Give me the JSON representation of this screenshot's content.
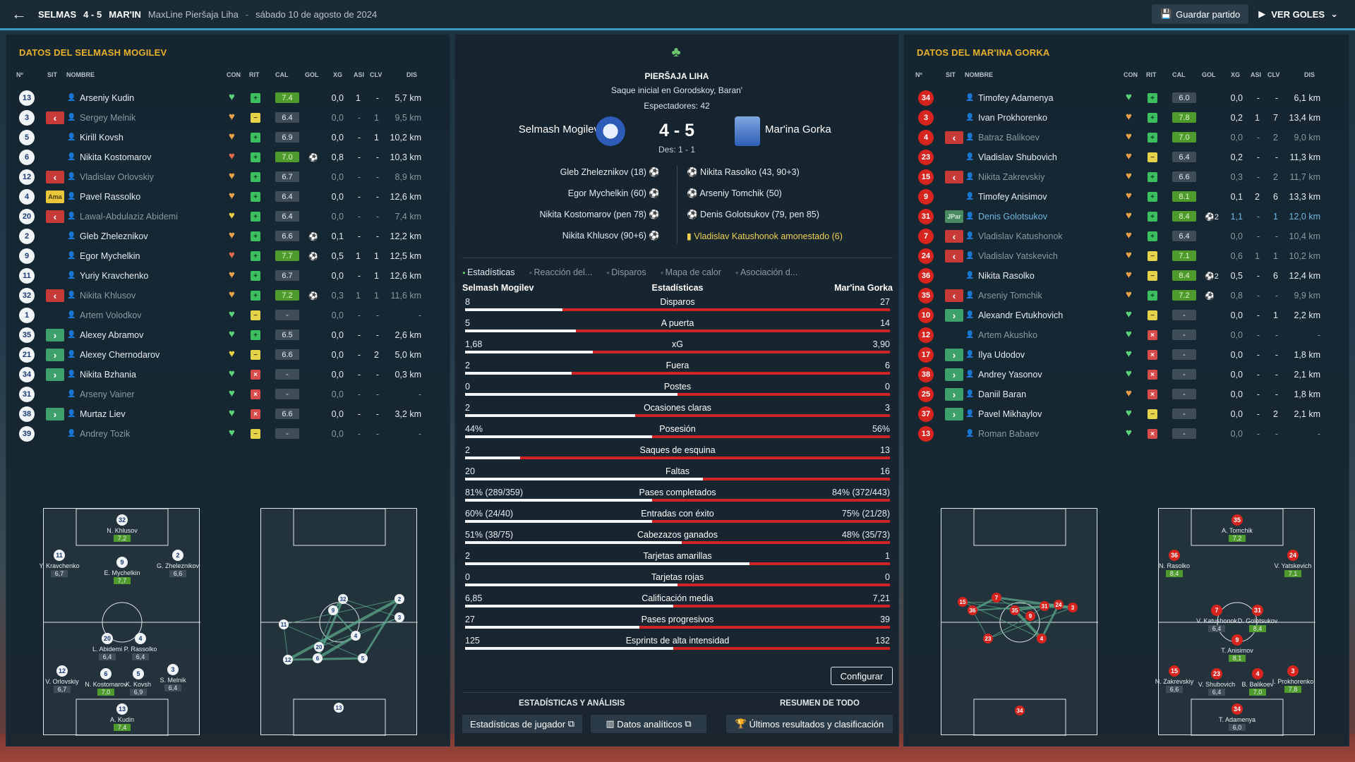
{
  "topbar": {
    "home": "SELMAS",
    "score": "4 - 5",
    "away": "MAR'IN",
    "competition": "MaxLine Pieršaja Liha",
    "sep": "-",
    "date": "sábado 10 de agosto de 2024",
    "save_label": "Guardar partido",
    "goals_label": "VER GOLES"
  },
  "left": {
    "title": "DATOS DEL SELMASH MOGILEV",
    "cols": {
      "n": "Nº",
      "sit": "SIT",
      "name": "NOMBRE",
      "con": "CON",
      "rit": "RIT",
      "cal": "CAL",
      "gol": "GOL",
      "xg": "XG",
      "asi": "ASI",
      "clv": "CLV",
      "dis": "DIS"
    },
    "players": [
      {
        "n": "13",
        "sit": "",
        "name": "Arseniy Kudin",
        "con": "g",
        "rit": "g",
        "cal": "7.4",
        "calg": true,
        "gol": "",
        "xg": "0,0",
        "asi": "1",
        "clv": "-",
        "dis": "5,7 km",
        "dim": false
      },
      {
        "n": "3",
        "sit": "out",
        "name": "Sergey Melnik",
        "con": "o",
        "rit": "y",
        "cal": "6.4",
        "gol": "",
        "xg": "0,0",
        "asi": "-",
        "clv": "1",
        "dis": "9,5 km",
        "dim": true
      },
      {
        "n": "5",
        "sit": "",
        "name": "Kirill Kovsh",
        "con": "o",
        "rit": "g",
        "cal": "6.9",
        "gol": "",
        "xg": "0,0",
        "asi": "-",
        "clv": "1",
        "dis": "10,2 km",
        "dim": false
      },
      {
        "n": "6",
        "sit": "",
        "name": "Nikita Kostomarov",
        "con": "r",
        "rit": "g",
        "cal": "7.0",
        "calg": true,
        "gol": "⚽",
        "xg": "0,8",
        "asi": "-",
        "clv": "-",
        "dis": "10,3 km",
        "dim": false
      },
      {
        "n": "12",
        "sit": "out",
        "name": "Vladislav Orlovskiy",
        "con": "o",
        "rit": "g",
        "cal": "6.7",
        "gol": "",
        "xg": "0,0",
        "asi": "-",
        "clv": "-",
        "dis": "8,9 km",
        "dim": true
      },
      {
        "n": "4",
        "sit": "cap",
        "sit_text": "Ama",
        "name": "Pavel Rassolko",
        "con": "o",
        "rit": "g",
        "cal": "6.4",
        "gol": "",
        "xg": "0,0",
        "asi": "-",
        "clv": "-",
        "dis": "12,6 km",
        "dim": false
      },
      {
        "n": "20",
        "sit": "out",
        "name": "Lawal-Abdulaziz Abidemi",
        "con": "y",
        "rit": "g",
        "cal": "6.4",
        "gol": "",
        "xg": "0,0",
        "asi": "-",
        "clv": "-",
        "dis": "7,4 km",
        "dim": true
      },
      {
        "n": "2",
        "sit": "",
        "name": "Gleb Zheleznikov",
        "con": "o",
        "rit": "g",
        "cal": "6.6",
        "gol": "⚽",
        "xg": "0,1",
        "asi": "-",
        "clv": "-",
        "dis": "12,2 km",
        "dim": false
      },
      {
        "n": "9",
        "sit": "",
        "name": "Egor Mychelkin",
        "con": "r",
        "rit": "g",
        "cal": "7.7",
        "calg": true,
        "gol": "⚽",
        "xg": "0,5",
        "asi": "1",
        "clv": "1",
        "dis": "12,5 km",
        "dim": false
      },
      {
        "n": "11",
        "sit": "",
        "name": "Yuriy Kravchenko",
        "con": "o",
        "rit": "g",
        "cal": "6.7",
        "gol": "",
        "xg": "0,0",
        "asi": "-",
        "clv": "1",
        "dis": "12,6 km",
        "dim": false
      },
      {
        "n": "32",
        "sit": "out",
        "name": "Nikita Khlusov",
        "con": "o",
        "rit": "g",
        "cal": "7.2",
        "calg": true,
        "gol": "⚽",
        "xg": "0,3",
        "asi": "1",
        "clv": "1",
        "dis": "11,6 km",
        "dim": true
      },
      {
        "n": "1",
        "sit": "",
        "name": "Artem Volodkov",
        "con": "g",
        "rit": "y",
        "cal": "-",
        "gol": "",
        "xg": "0,0",
        "asi": "-",
        "clv": "-",
        "dis": "-",
        "dim": true
      },
      {
        "n": "35",
        "sit": "in",
        "name": "Alexey Abramov",
        "con": "g",
        "rit": "g",
        "cal": "6.5",
        "gol": "",
        "xg": "0,0",
        "asi": "-",
        "clv": "-",
        "dis": "2,6 km",
        "dim": false
      },
      {
        "n": "21",
        "sit": "in",
        "name": "Alexey Chernodarov",
        "con": "y",
        "rit": "y",
        "cal": "6.6",
        "gol": "",
        "xg": "0,0",
        "asi": "-",
        "clv": "2",
        "dis": "5,0 km",
        "dim": false
      },
      {
        "n": "34",
        "sit": "in",
        "name": "Nikita Bzhania",
        "con": "g",
        "rit": "r",
        "cal": "-",
        "gol": "",
        "xg": "0,0",
        "asi": "-",
        "clv": "-",
        "dis": "0,3 km",
        "dim": false
      },
      {
        "n": "31",
        "sit": "",
        "name": "Arseny Vainer",
        "con": "g",
        "rit": "r",
        "cal": "-",
        "gol": "",
        "xg": "0,0",
        "asi": "-",
        "clv": "-",
        "dis": "-",
        "dim": true
      },
      {
        "n": "38",
        "sit": "in",
        "name": "Murtaz Liev",
        "con": "g",
        "rit": "r",
        "cal": "6.6",
        "gol": "",
        "xg": "0,0",
        "asi": "-",
        "clv": "-",
        "dis": "3,2 km",
        "dim": false
      },
      {
        "n": "39",
        "sit": "",
        "name": "Andrey Tozik",
        "con": "g",
        "rit": "y",
        "cal": "-",
        "gol": "",
        "xg": "0,0",
        "asi": "-",
        "clv": "-",
        "dis": "-",
        "dim": true
      }
    ]
  },
  "right": {
    "title": "DATOS DEL MAR'INA GORKA",
    "players": [
      {
        "n": "34",
        "sit": "",
        "name": "Timofey Adamenya",
        "con": "g",
        "rit": "g",
        "cal": "6.0",
        "gol": "",
        "xg": "0,0",
        "asi": "-",
        "clv": "-",
        "dis": "6,1 km",
        "dim": false
      },
      {
        "n": "3",
        "sit": "",
        "name": "Ivan Prokhorenko",
        "con": "o",
        "rit": "g",
        "cal": "7.8",
        "calg": true,
        "gol": "",
        "xg": "0,2",
        "asi": "1",
        "clv": "7",
        "dis": "13,4 km",
        "dim": false
      },
      {
        "n": "4",
        "sit": "out",
        "name": "Batraz Balikoev",
        "con": "o",
        "rit": "g",
        "cal": "7.0",
        "calg": true,
        "gol": "",
        "xg": "0,0",
        "asi": "-",
        "clv": "2",
        "dis": "9,0 km",
        "dim": true
      },
      {
        "n": "23",
        "sit": "",
        "name": "Vladislav Shubovich",
        "con": "o",
        "rit": "y",
        "cal": "6.4",
        "gol": "",
        "xg": "0,2",
        "asi": "-",
        "clv": "-",
        "dis": "11,3 km",
        "dim": false
      },
      {
        "n": "15",
        "sit": "out",
        "name": "Nikita Zakrevskiy",
        "con": "o",
        "rit": "g",
        "cal": "6.6",
        "gol": "",
        "xg": "0,3",
        "asi": "-",
        "clv": "2",
        "dis": "11,7 km",
        "dim": true
      },
      {
        "n": "9",
        "sit": "",
        "name": "Timofey Anisimov",
        "con": "o",
        "rit": "g",
        "cal": "8.1",
        "calg": true,
        "gol": "",
        "xg": "0,1",
        "asi": "2",
        "clv": "6",
        "dis": "13,3 km",
        "dim": false
      },
      {
        "n": "31",
        "sit": "pom",
        "sit_text": "JPar",
        "name": "Denis Golotsukov",
        "con": "o",
        "rit": "g",
        "cal": "8.4",
        "calg": true,
        "gol": "⚽2",
        "xg": "1,1",
        "asi": "-",
        "clv": "1",
        "dis": "12,0 km",
        "sel": true
      },
      {
        "n": "7",
        "sit": "out",
        "name": "Vladislav Katushonok",
        "con": "o",
        "rit": "g",
        "cal": "6.4",
        "gol": "",
        "xg": "0,0",
        "asi": "-",
        "clv": "-",
        "dis": "10,4 km",
        "dim": true
      },
      {
        "n": "24",
        "sit": "out",
        "name": "Vladislav Yatskevich",
        "con": "o",
        "rit": "y",
        "cal": "7.1",
        "calg": true,
        "gol": "",
        "xg": "0,6",
        "asi": "1",
        "clv": "1",
        "dis": "10,2 km",
        "dim": true
      },
      {
        "n": "36",
        "sit": "",
        "name": "Nikita Rasolko",
        "con": "o",
        "rit": "y",
        "cal": "8.4",
        "calg": true,
        "gol": "⚽2",
        "xg": "0,5",
        "asi": "-",
        "clv": "6",
        "dis": "12,4 km",
        "dim": false
      },
      {
        "n": "35",
        "sit": "out",
        "name": "Arseniy Tomchik",
        "con": "o",
        "rit": "g",
        "cal": "7.2",
        "calg": true,
        "gol": "⚽",
        "xg": "0,8",
        "asi": "-",
        "clv": "-",
        "dis": "9,9 km",
        "dim": true
      },
      {
        "n": "10",
        "sit": "in",
        "name": "Alexandr Evtukhovich",
        "con": "g",
        "rit": "y",
        "cal": "-",
        "gol": "",
        "xg": "0,0",
        "asi": "-",
        "clv": "1",
        "dis": "2,2 km",
        "dim": false
      },
      {
        "n": "12",
        "sit": "",
        "name": "Artem Akushko",
        "con": "g",
        "rit": "r",
        "cal": "-",
        "gol": "",
        "xg": "0,0",
        "asi": "-",
        "clv": "-",
        "dis": "-",
        "dim": true
      },
      {
        "n": "17",
        "sit": "in",
        "name": "Ilya Udodov",
        "con": "g",
        "rit": "r",
        "cal": "-",
        "gol": "",
        "xg": "0,0",
        "asi": "-",
        "clv": "-",
        "dis": "1,8 km",
        "dim": false
      },
      {
        "n": "38",
        "sit": "in",
        "name": "Andrey Yasonov",
        "con": "g",
        "rit": "r",
        "cal": "-",
        "gol": "",
        "xg": "0,0",
        "asi": "-",
        "clv": "-",
        "dis": "2,1 km",
        "dim": false
      },
      {
        "n": "25",
        "sit": "in",
        "name": "Daniil Baran",
        "con": "o",
        "rit": "r",
        "cal": "-",
        "gol": "",
        "xg": "0,0",
        "asi": "-",
        "clv": "-",
        "dis": "1,8 km",
        "dim": false
      },
      {
        "n": "37",
        "sit": "in",
        "name": "Pavel Mikhaylov",
        "con": "g",
        "rit": "y",
        "cal": "-",
        "gol": "",
        "xg": "0,0",
        "asi": "-",
        "clv": "2",
        "dis": "2,1 km",
        "dim": false
      },
      {
        "n": "13",
        "sit": "",
        "name": "Roman Babaev",
        "con": "g",
        "rit": "r",
        "cal": "-",
        "gol": "",
        "xg": "0,0",
        "asi": "-",
        "clv": "-",
        "dis": "-",
        "dim": true
      }
    ]
  },
  "mid": {
    "competition": "PIERŠAJA LIHA",
    "venue": "Saque inicial en Gorodskoy, Baran'",
    "attendance": "Espectadores: 42",
    "home": "Selmash Mogilev",
    "away": "Mar'ina Gorka",
    "score": "4 - 5",
    "ht": "Des: 1 - 1",
    "home_goals": [
      "Gleb Zheleznikov (18)",
      "Egor Mychelkin (60)",
      "Nikita Kostomarov (pen 78)",
      "Nikita Khlusov (90+6)"
    ],
    "away_events": [
      {
        "text": "Nikita Rasolko (43, 90+3)",
        "card": false
      },
      {
        "text": "Arseniy Tomchik (50)",
        "card": false
      },
      {
        "text": "Denis Golotsukov (79, pen 85)",
        "card": false
      },
      {
        "text": "Vladislav Katushonok amonestado (6)",
        "card": true
      }
    ],
    "tabs": [
      "Estadísticas",
      "Reacción del...",
      "Disparos",
      "Mapa de calor",
      "Asociación d..."
    ],
    "stat_head": {
      "home": "Selmash Mogilev",
      "mid": "Estadísticas",
      "away": "Mar'ina Gorka"
    },
    "stats": [
      {
        "l": "8",
        "n": "Disparos",
        "r": "27",
        "p": 0.23
      },
      {
        "l": "5",
        "n": "A puerta",
        "r": "14",
        "p": 0.26
      },
      {
        "l": "1,68",
        "n": "xG",
        "r": "3,90",
        "p": 0.3
      },
      {
        "l": "2",
        "n": "Fuera",
        "r": "6",
        "p": 0.25
      },
      {
        "l": "0",
        "n": "Postes",
        "r": "0",
        "p": 0.5
      },
      {
        "l": "2",
        "n": "Ocasiones claras",
        "r": "3",
        "p": 0.4
      },
      {
        "l": "44%",
        "n": "Posesión",
        "r": "56%",
        "p": 0.44
      },
      {
        "l": "2",
        "n": "Saques de esquina",
        "r": "13",
        "p": 0.13
      },
      {
        "l": "20",
        "n": "Faltas",
        "r": "16",
        "p": 0.56
      },
      {
        "l": "81% (289/359)",
        "n": "Pases completados",
        "r": "84% (372/443)",
        "p": 0.44
      },
      {
        "l": "60% (24/40)",
        "n": "Entradas con éxito",
        "r": "75% (21/28)",
        "p": 0.44
      },
      {
        "l": "51% (38/75)",
        "n": "Cabezazos ganados",
        "r": "48% (35/73)",
        "p": 0.51
      },
      {
        "l": "2",
        "n": "Tarjetas amarillas",
        "r": "1",
        "p": 0.67
      },
      {
        "l": "0",
        "n": "Tarjetas rojas",
        "r": "0",
        "p": 0.5
      },
      {
        "l": "6,85",
        "n": "Calificación media",
        "r": "7,21",
        "p": 0.49
      },
      {
        "l": "27",
        "n": "Pases progresivos",
        "r": "39",
        "p": 0.41
      },
      {
        "l": "125",
        "n": "Esprints de alta intensidad",
        "r": "132",
        "p": 0.49
      }
    ],
    "config_label": "Configurar",
    "foot_h1": "ESTADÍSTICAS Y ANÁLISIS",
    "foot_h2": "RESUMEN DE TODO",
    "btn_player": "Estadísticas de jugador",
    "btn_data": "Datos analíticos",
    "btn_results": "Últimos resultados y clasificación"
  },
  "pitch_left": [
    {
      "n": "32",
      "name": "N. Khlusov",
      "r": "7,2",
      "g": true
    },
    {
      "n": "11",
      "name": "Y. Kravchenko",
      "r": "6,7"
    },
    {
      "n": "9",
      "name": "E. Mychelkin",
      "r": "7,7",
      "g": true
    },
    {
      "n": "2",
      "name": "G. Zheleznikov",
      "r": "6,6"
    },
    {
      "n": "20",
      "name": "L. Abidemi",
      "r": "6,4"
    },
    {
      "n": "4",
      "name": "P. Rassolko",
      "r": "6,4"
    },
    {
      "n": "12",
      "name": "V. Orlovskiy",
      "r": "6,7"
    },
    {
      "n": "6",
      "name": "N. Kostomarov",
      "r": "7,0",
      "g": true
    },
    {
      "n": "5",
      "name": "K. Kovsh",
      "r": "6,9"
    },
    {
      "n": "3",
      "name": "S. Melnik",
      "r": "6,4"
    },
    {
      "n": "13",
      "name": "A. Kudin",
      "r": "7,4",
      "g": true
    }
  ],
  "pitch_right": [
    {
      "n": "35",
      "name": "A. Tomchik",
      "r": "7,2",
      "g": true
    },
    {
      "n": "36",
      "name": "N. Rasolko",
      "r": "8,4",
      "g": true
    },
    {
      "n": "24",
      "name": "V. Yatskevich",
      "r": "7,1",
      "g": true
    },
    {
      "n": "7",
      "name": "V. Katushonok",
      "r": "6,4"
    },
    {
      "n": "31",
      "name": "D. Golotsukov",
      "r": "8,4",
      "g": true
    },
    {
      "n": "9",
      "name": "T. Anisimov",
      "r": "8,1",
      "g": true
    },
    {
      "n": "15",
      "name": "N. Zakrevskiy",
      "r": "6,6"
    },
    {
      "n": "23",
      "name": "V. Shubovich",
      "r": "6,4"
    },
    {
      "n": "4",
      "name": "B. Balikoev",
      "r": "7,0",
      "g": true
    },
    {
      "n": "3",
      "name": "I. Prokhorenko",
      "r": "7,8",
      "g": true
    },
    {
      "n": "34",
      "name": "T. Adamenya",
      "r": "6,0"
    }
  ],
  "heat_left": [
    "11",
    "9",
    "32",
    "2",
    "3",
    "4",
    "5",
    "6",
    "20",
    "12",
    "13"
  ],
  "heat_right": [
    "15",
    "36",
    "7",
    "35",
    "9",
    "31",
    "24",
    "3",
    "23",
    "4",
    "34"
  ],
  "colors": {
    "accent": "#e7b02a",
    "home": "#f0f4f6",
    "away": "#d7241f",
    "bar_home": "#f2f4f5",
    "bar_away": "#cf2424"
  }
}
